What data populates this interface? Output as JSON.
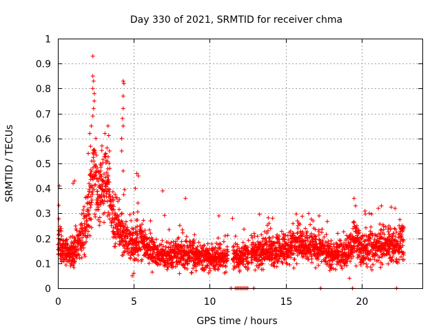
{
  "chart_data": {
    "type": "scatter",
    "title": "Day 330 of 2021, SRMTID for receiver chma",
    "xlabel": "GPS time / hours",
    "ylabel": "SRMTID / TECUs",
    "xlim": [
      0,
      24
    ],
    "ylim": [
      0,
      1
    ],
    "xticks": [
      0,
      5,
      10,
      15,
      20
    ],
    "xtick_labels": [
      "0",
      "5",
      "10",
      "15",
      "20"
    ],
    "yticks": [
      0,
      0.1,
      0.2,
      0.3,
      0.4,
      0.5,
      0.6,
      0.7,
      0.8,
      0.9,
      1
    ],
    "ytick_labels": [
      "0",
      "0.1",
      "0.2",
      "0.3",
      "0.4",
      "0.5",
      "0.6",
      "0.7",
      "0.8",
      "0.9",
      "1"
    ],
    "grid": true,
    "marker": "+",
    "color": "#ff0000",
    "series": [
      {
        "name": "SRMTID",
        "baseline": [
          [
            0,
            0.18
          ],
          [
            0.5,
            0.15
          ],
          [
            1,
            0.14
          ],
          [
            1.5,
            0.2
          ],
          [
            2,
            0.3
          ],
          [
            2.3,
            0.45
          ],
          [
            2.7,
            0.38
          ],
          [
            3.2,
            0.45
          ],
          [
            3.6,
            0.3
          ],
          [
            4,
            0.25
          ],
          [
            4.5,
            0.2
          ],
          [
            5,
            0.17
          ],
          [
            5.5,
            0.2
          ],
          [
            6,
            0.15
          ],
          [
            7,
            0.13
          ],
          [
            8,
            0.14
          ],
          [
            9,
            0.13
          ],
          [
            10,
            0.12
          ],
          [
            11,
            0.13
          ],
          [
            12,
            0.13
          ],
          [
            13,
            0.14
          ],
          [
            14,
            0.15
          ],
          [
            15,
            0.15
          ],
          [
            16,
            0.17
          ],
          [
            17,
            0.17
          ],
          [
            18,
            0.13
          ],
          [
            19,
            0.14
          ],
          [
            19.5,
            0.2
          ],
          [
            20,
            0.16
          ],
          [
            21,
            0.17
          ],
          [
            22,
            0.17
          ],
          [
            22.8,
            0.19
          ]
        ],
        "gaps": [
          [
            11.2,
            11.5
          ],
          [
            12.6,
            12.7
          ]
        ],
        "outliers": [
          [
            2.3,
            0.93
          ],
          [
            2.3,
            0.85
          ],
          [
            2.35,
            0.83
          ],
          [
            2.3,
            0.8
          ],
          [
            2.4,
            0.78
          ],
          [
            2.4,
            0.75
          ],
          [
            2.35,
            0.72
          ],
          [
            2.3,
            0.69
          ],
          [
            2.2,
            0.65
          ],
          [
            2.5,
            0.6
          ],
          [
            2.1,
            0.62
          ],
          [
            3.3,
            0.65
          ],
          [
            3.1,
            0.62
          ],
          [
            4.3,
            0.83
          ],
          [
            4.35,
            0.82
          ],
          [
            4.3,
            0.77
          ],
          [
            4.3,
            0.72
          ],
          [
            4.25,
            0.68
          ],
          [
            4.3,
            0.65
          ],
          [
            4.2,
            0.6
          ],
          [
            4.2,
            0.55
          ],
          [
            4.3,
            0.47
          ],
          [
            0.1,
            0.41
          ],
          [
            2.0,
            0.54
          ],
          [
            2.9,
            0.57
          ],
          [
            3.4,
            0.55
          ],
          [
            5.3,
            0.45
          ],
          [
            5.2,
            0.46
          ],
          [
            5.1,
            0.4
          ],
          [
            6.9,
            0.39
          ],
          [
            8.4,
            0.36
          ],
          [
            19.5,
            0.36
          ],
          [
            19.6,
            0.33
          ],
          [
            21.3,
            0.33
          ],
          [
            21.1,
            0.32
          ],
          [
            22.2,
            0.32
          ],
          [
            11.5,
            0.28
          ],
          [
            13.9,
            0.26
          ],
          [
            16.8,
            0.27
          ],
          [
            17.2,
            0.29
          ],
          [
            19.2,
            0.04
          ],
          [
            15.8,
            0.25
          ],
          [
            20.5,
            0.3
          ],
          [
            1.0,
            0.42
          ],
          [
            1.1,
            0.43
          ],
          [
            5.0,
            0.06
          ],
          [
            4.9,
            0.05
          ],
          [
            9.1,
            0.07
          ],
          [
            10.6,
            0.29
          ],
          [
            6.1,
            0.27
          ]
        ],
        "baseline_markers": [
          11.4,
          11.7,
          11.8,
          11.9,
          12.0,
          12.1,
          12.2,
          12.3,
          12.4,
          12.5,
          12.9,
          17.3,
          19.4,
          22.3
        ]
      }
    ]
  }
}
